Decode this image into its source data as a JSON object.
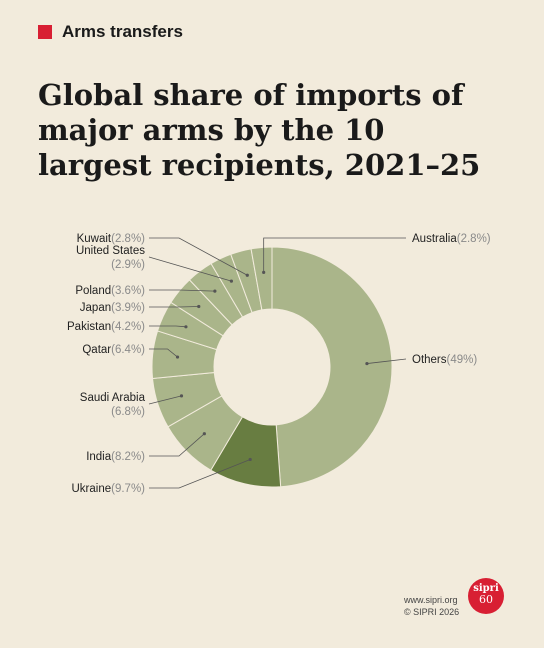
{
  "header": {
    "tag_label": "Arms transfers"
  },
  "title": "Global share of imports of major arms by the 10 largest recipients, 2021–25",
  "colors": {
    "accent": "#d81f33",
    "others": "#aab58a",
    "highlight": "#687d41",
    "background": "#f2ebdc",
    "label_value": "#8a8a8a"
  },
  "footer": {
    "url": "www.sipri.org",
    "copyright": "© SIPRI 2026"
  },
  "logo": {
    "text": "sipri",
    "number": "60"
  },
  "chart_data": {
    "type": "pie",
    "subtype": "donut",
    "unit": "%",
    "slices": [
      {
        "label": "Others",
        "value": 49,
        "display": "(49%)"
      },
      {
        "label": "Ukraine",
        "value": 9.7,
        "display": "(9.7%)",
        "highlight": true
      },
      {
        "label": "India",
        "value": 8.2,
        "display": "(8.2%)"
      },
      {
        "label": "Saudi Arabia",
        "value": 6.8,
        "display": "(6.8%)"
      },
      {
        "label": "Qatar",
        "value": 6.4,
        "display": "(6.4%)"
      },
      {
        "label": "Pakistan",
        "value": 4.2,
        "display": "(4.2%)"
      },
      {
        "label": "Japan",
        "value": 3.9,
        "display": "(3.9%)"
      },
      {
        "label": "Poland",
        "value": 3.6,
        "display": "(3.6%)"
      },
      {
        "label": "United States",
        "value": 2.9,
        "display": "(2.9%)"
      },
      {
        "label": "Kuwait",
        "value": 2.8,
        "display": "(2.8%)"
      },
      {
        "label": "Australia",
        "value": 2.8,
        "display": "(2.8%)"
      }
    ]
  }
}
